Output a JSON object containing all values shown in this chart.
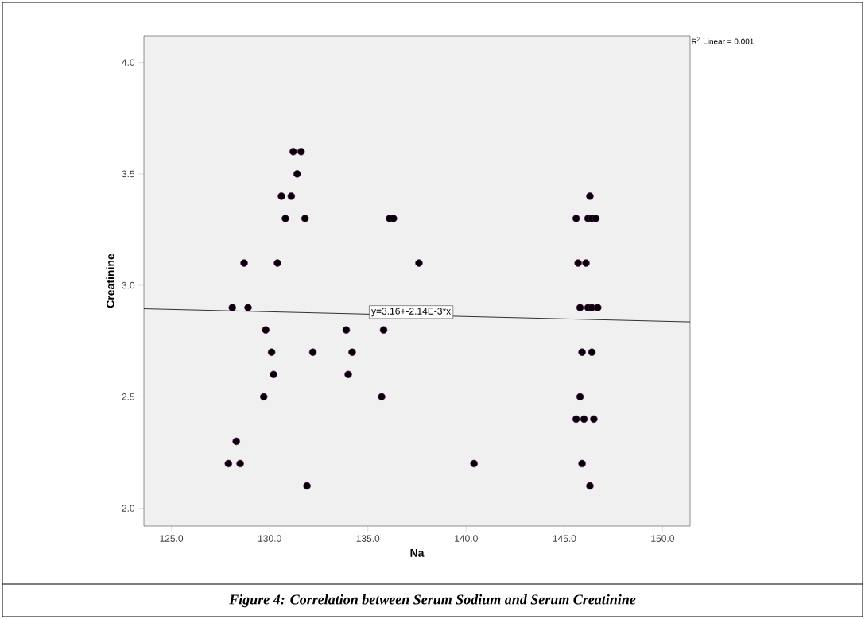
{
  "chart_data": {
    "type": "scatter",
    "xlabel": "Na",
    "ylabel": "Creatinine",
    "xlim": [
      123.6,
      151.4
    ],
    "ylim": [
      1.92,
      4.12
    ],
    "xticks": [
      {
        "value": 125,
        "label": "125.0"
      },
      {
        "value": 130,
        "label": "130.0"
      },
      {
        "value": 135,
        "label": "135.0"
      },
      {
        "value": 140,
        "label": "140.0"
      },
      {
        "value": 145,
        "label": "145.0"
      },
      {
        "value": 150,
        "label": "150.0"
      }
    ],
    "yticks": [
      {
        "value": 2,
        "label": "2.0"
      },
      {
        "value": 2.5,
        "label": "2.5"
      },
      {
        "value": 3,
        "label": "3.0"
      },
      {
        "value": 3.5,
        "label": "3.5"
      },
      {
        "value": 4,
        "label": "4.0"
      }
    ],
    "grid": false,
    "series": [
      {
        "type": "scatter",
        "color": "#000000",
        "marker": "circle",
        "x": [
          131.2,
          131.6,
          131.4,
          130.6,
          131.1,
          130.8,
          131.8,
          128.7,
          130.4,
          128.1,
          128.9,
          129.8,
          130.1,
          130.2,
          129.7,
          128.3,
          127.9,
          128.5,
          131.9,
          136.1,
          136.3,
          137.6,
          133.9,
          135.8,
          132.2,
          134.2,
          134.0,
          135.7,
          140.4,
          146.3,
          145.6,
          146.2,
          146.4,
          146.6,
          145.7,
          146.1,
          145.8,
          146.2,
          146.4,
          146.7,
          145.9,
          146.4,
          145.8,
          145.6,
          146.0,
          146.5,
          145.9,
          146.3
        ],
        "values": [
          3.6,
          3.6,
          3.5,
          3.4,
          3.4,
          3.3,
          3.3,
          3.1,
          3.1,
          2.9,
          2.9,
          2.8,
          2.7,
          2.6,
          2.5,
          2.3,
          2.2,
          2.2,
          2.1,
          3.3,
          3.3,
          3.1,
          2.8,
          2.8,
          2.7,
          2.7,
          2.6,
          2.5,
          2.2,
          3.4,
          3.3,
          3.3,
          3.3,
          3.3,
          3.1,
          3.1,
          2.9,
          2.9,
          2.9,
          2.9,
          2.7,
          2.7,
          2.5,
          2.4,
          2.4,
          2.4,
          2.2,
          2.1
        ]
      },
      {
        "type": "line",
        "color": "#000000",
        "marker": "none",
        "x": [
          123.6,
          151.4
        ],
        "values": [
          2.895,
          2.836
        ]
      }
    ],
    "annotations": [
      "R$^{2}$ Linear = 0.001",
      {
        "text": "y=3.16+-2.14E-3*x",
        "x": 137.2,
        "y": 2.88
      },
      "Figure 4: Correlation between Serum Sodium and Serum Creatinine"
    ]
  }
}
